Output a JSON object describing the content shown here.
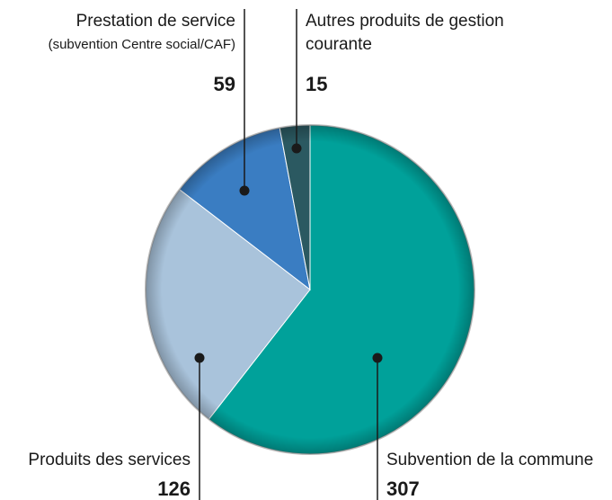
{
  "chart_data": {
    "type": "pie",
    "categories": [
      [
        "Subvention de la commune"
      ],
      [
        "Produits des services"
      ],
      [
        "Prestation de service",
        "(subvention Centre social/CAF)"
      ],
      [
        "Autres produits de gestion",
        "courante"
      ]
    ],
    "values": [
      307,
      126,
      59,
      15
    ],
    "colors": [
      "#00a19a",
      "#a9c3db",
      "#3a7dc2",
      "#2b5961"
    ]
  }
}
